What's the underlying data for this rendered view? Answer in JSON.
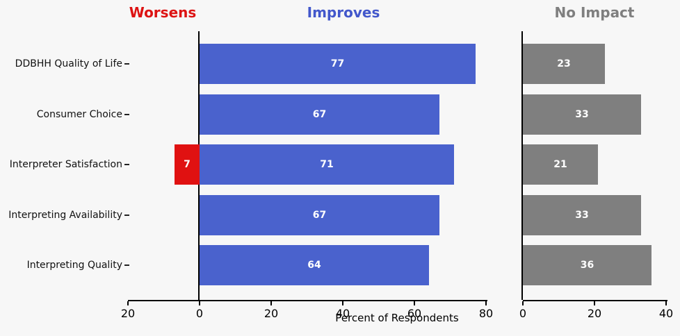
{
  "page": {
    "background": "#f7f7f7"
  },
  "chart_data": {
    "type": "bar",
    "orientation": "horizontal",
    "xlabel": "Percent of Respondents",
    "categories": [
      "DDBHH Quality of Life",
      "Consumer Choice",
      "Interpreter Satisfaction",
      "Interpreting Availability",
      "Interpreting Quality"
    ],
    "headers": [
      {
        "label": "Worsens",
        "color": "#dd1313"
      },
      {
        "label": "Improves",
        "color": "#4257cb"
      },
      {
        "label": "No Impact",
        "color": "#7f7f7f"
      }
    ],
    "series": [
      {
        "name": "Worsens",
        "color": "#e01111",
        "panel": "left",
        "direction": "left",
        "values": [
          null,
          null,
          7,
          null,
          null
        ]
      },
      {
        "name": "Improves",
        "color": "#4a62cd",
        "panel": "left",
        "direction": "right",
        "values": [
          77,
          67,
          71,
          67,
          64
        ]
      },
      {
        "name": "No Impact",
        "color": "#7f7f7f",
        "panel": "right",
        "direction": "right",
        "values": [
          23,
          33,
          21,
          33,
          36
        ]
      }
    ],
    "left_axis": {
      "range": [
        -20,
        80
      ],
      "ticks": [
        -20,
        0,
        20,
        40,
        60,
        80
      ],
      "tick_labels": [
        "20",
        "0",
        "20",
        "40",
        "60",
        "80"
      ]
    },
    "right_axis": {
      "range": [
        0,
        40
      ],
      "ticks": [
        0,
        20,
        40
      ],
      "tick_labels": [
        "0",
        "20",
        "40"
      ]
    },
    "value_label_color": "#ffffff",
    "grid": false,
    "legend_position": "none"
  }
}
